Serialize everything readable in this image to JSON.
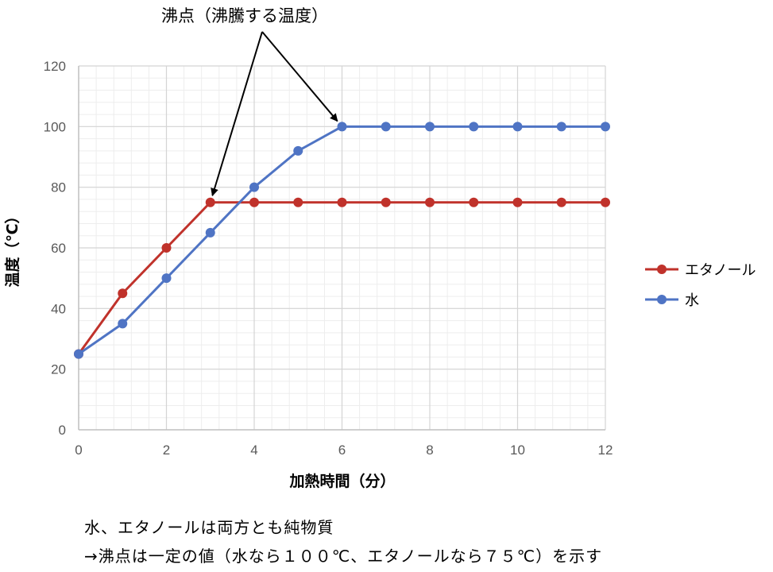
{
  "chart_data": {
    "type": "line",
    "xlabel": "加熱時間（分）",
    "ylabel": "温度（℃）",
    "xlim": [
      0,
      12
    ],
    "ylim": [
      0,
      120
    ],
    "xticks": [
      0,
      2,
      4,
      6,
      8,
      10,
      12
    ],
    "yticks": [
      0,
      20,
      40,
      60,
      80,
      100,
      120
    ],
    "grid": true,
    "legend_position": "right",
    "x": [
      0,
      1,
      2,
      3,
      4,
      5,
      6,
      7,
      8,
      9,
      10,
      11,
      12
    ],
    "series": [
      {
        "name": "エタノール",
        "color": "#C0322B",
        "values": [
          25,
          45,
          60,
          75,
          75,
          75,
          75,
          75,
          75,
          75,
          75,
          75,
          75
        ]
      },
      {
        "name": "水",
        "color": "#4F74C4",
        "values": [
          25,
          35,
          50,
          65,
          80,
          92,
          100,
          100,
          100,
          100,
          100,
          100,
          100
        ]
      }
    ],
    "annotation": {
      "text": "沸点（沸騰する温度）",
      "targets": [
        {
          "series": 0,
          "x": 3
        },
        {
          "series": 1,
          "x": 6
        }
      ]
    }
  },
  "notes": {
    "line1": "水、エタノールは両方とも純物質",
    "line2": "→沸点は一定の値（水なら１００℃、エタノールなら７５℃）を示す"
  }
}
